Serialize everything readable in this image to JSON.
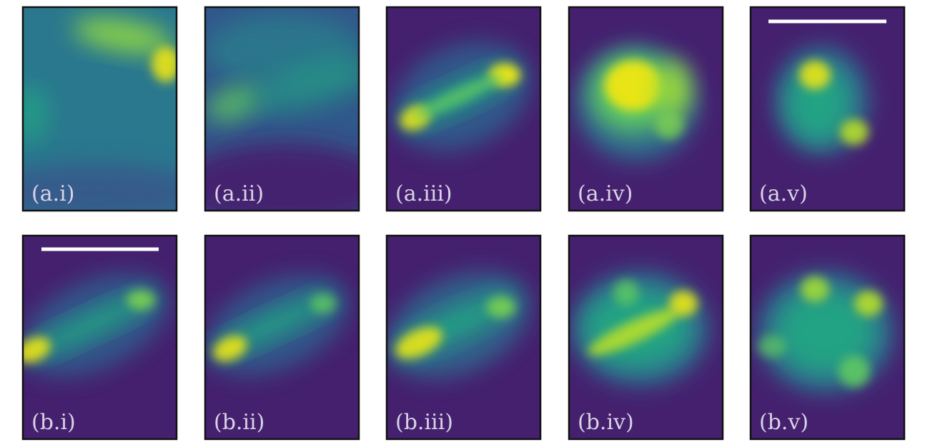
{
  "panels": [
    {
      "label": "(a.i)"
    },
    {
      "label": "(a.ii)"
    },
    {
      "label": "(a.iii)"
    },
    {
      "label": "(a.iv)"
    },
    {
      "label": "(a.v)"
    },
    {
      "label": "(b.i)"
    },
    {
      "label": "(b.ii)"
    },
    {
      "label": "(b.iii)"
    },
    {
      "label": "(b.iv)"
    },
    {
      "label": "(b.v)"
    }
  ]
}
